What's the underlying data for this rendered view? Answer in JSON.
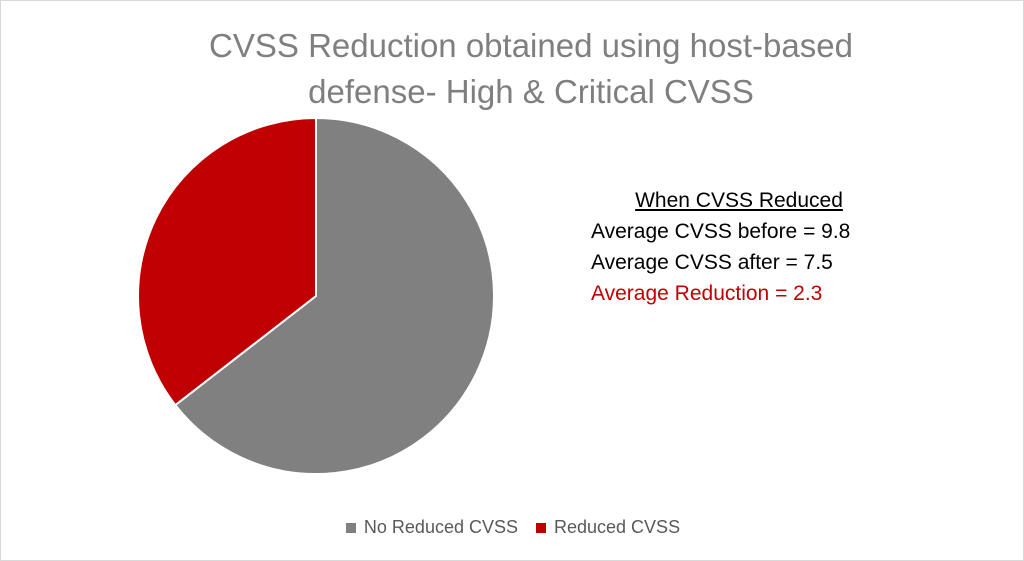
{
  "chart_data": {
    "type": "pie",
    "title_lines": [
      "CVSS Reduction obtained using host-based",
      "defense- High & Critical CVSS"
    ],
    "categories": [
      "No Reduced CVSS",
      "Reduced CVSS"
    ],
    "values": [
      64.5,
      35.5
    ],
    "colors": [
      "#808080",
      "#c00000"
    ],
    "legend_position": "bottom",
    "annotations": {
      "heading": "When CVSS Reduced",
      "lines": [
        {
          "text": "Average CVSS before = 9.8",
          "color": "#000000"
        },
        {
          "text": "Average CVSS after = 7.5",
          "color": "#000000"
        },
        {
          "text": "Average Reduction = 2.3",
          "color": "#c00000"
        }
      ]
    }
  }
}
